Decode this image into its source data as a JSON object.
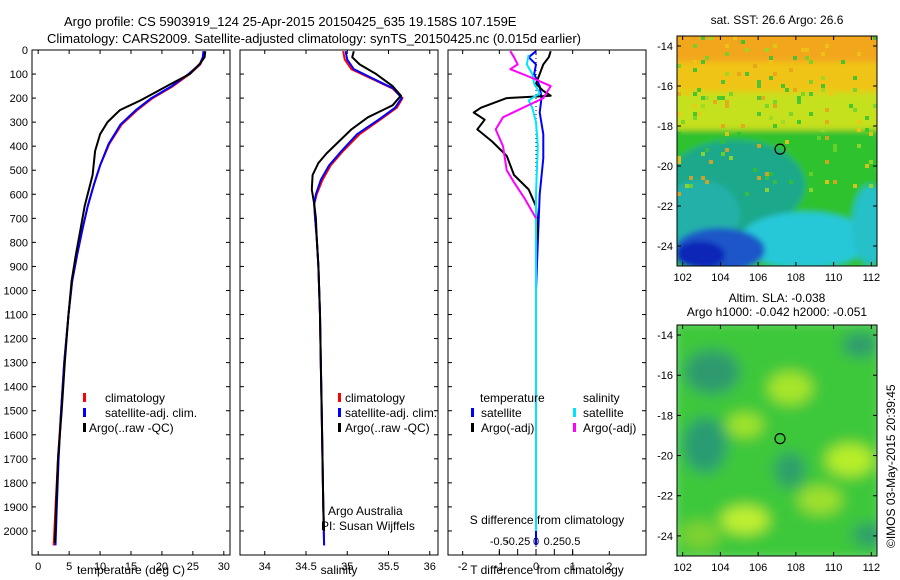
{
  "title": {
    "line1": "Argo profile: CS 5903919_124 25-Apr-2015 20150425_635 19.158S 107.159E",
    "line2": "Climatology: CARS2009. Satellite-adjusted climatology: synTS_20150425.nc (0.015d earlier)"
  },
  "colors": {
    "red": "#ff0000",
    "blue": "#0000ff",
    "black": "#000000",
    "cyan": "#00e5ff",
    "magenta": "#ff00ff"
  },
  "chart_data": [
    {
      "type": "line",
      "id": "temperature",
      "xlabel": "temperature (deg C)",
      "xlim": [
        -1,
        31
      ],
      "ylim": [
        2100,
        0
      ],
      "xticks": [
        0,
        5,
        10,
        15,
        20,
        25,
        30
      ],
      "yticks": [
        0,
        100,
        200,
        300,
        400,
        500,
        600,
        700,
        800,
        900,
        1000,
        1100,
        1200,
        1300,
        1400,
        1500,
        1600,
        1700,
        1800,
        1900,
        2000
      ],
      "legend": [
        "climatology",
        "satellite-adj. clim.",
        "Argo(..raw -QC)"
      ],
      "series": [
        {
          "name": "climatology",
          "color": "red",
          "points": [
            [
              26.8,
              5
            ],
            [
              26.7,
              30
            ],
            [
              26.2,
              60
            ],
            [
              24.5,
              100
            ],
            [
              21.8,
              150
            ],
            [
              18.5,
              200
            ],
            [
              16,
              250
            ],
            [
              13.5,
              310
            ],
            [
              11.5,
              390
            ],
            [
              10,
              480
            ],
            [
              9,
              560
            ],
            [
              8,
              650
            ],
            [
              7.2,
              740
            ],
            [
              6.3,
              850
            ],
            [
              5.5,
              960
            ],
            [
              4.9,
              1100
            ],
            [
              4.2,
              1300
            ],
            [
              3.7,
              1500
            ],
            [
              3.2,
              1700
            ],
            [
              2.8,
              1900
            ],
            [
              2.5,
              2060
            ]
          ]
        },
        {
          "name": "satellite-adj. clim.",
          "color": "blue",
          "points": [
            [
              26.7,
              5
            ],
            [
              26.6,
              30
            ],
            [
              26.1,
              60
            ],
            [
              24.3,
              100
            ],
            [
              21.6,
              150
            ],
            [
              18.3,
              200
            ],
            [
              15.8,
              250
            ],
            [
              13.3,
              310
            ],
            [
              11.4,
              390
            ],
            [
              10,
              480
            ],
            [
              9,
              560
            ],
            [
              8,
              650
            ],
            [
              7.2,
              740
            ],
            [
              6.3,
              850
            ],
            [
              5.5,
              960
            ],
            [
              4.9,
              1100
            ],
            [
              4.2,
              1300
            ],
            [
              3.7,
              1500
            ],
            [
              3.3,
              1700
            ],
            [
              3,
              1900
            ],
            [
              2.8,
              2060
            ]
          ]
        },
        {
          "name": "Argo(..raw -QC)",
          "color": "black",
          "points": [
            [
              27,
              5
            ],
            [
              26.9,
              30
            ],
            [
              26.2,
              55
            ],
            [
              24.5,
              100
            ],
            [
              21.5,
              140
            ],
            [
              19,
              175
            ],
            [
              16.5,
              210
            ],
            [
              13.2,
              250
            ],
            [
              11.2,
              300
            ],
            [
              10,
              350
            ],
            [
              9.2,
              420
            ],
            [
              8.8,
              520
            ],
            [
              8.2,
              580
            ],
            [
              7.5,
              650
            ],
            [
              6.8,
              750
            ],
            [
              6.1,
              850
            ],
            [
              5.4,
              960
            ],
            [
              4.9,
              1100
            ],
            [
              4.3,
              1300
            ],
            [
              3.8,
              1500
            ],
            [
              3.2,
              1700
            ],
            [
              2.9,
              1900
            ],
            [
              2.7,
              2050
            ]
          ]
        }
      ]
    },
    {
      "type": "line",
      "id": "salinity",
      "xlabel": "salinity",
      "xlim": [
        33.7,
        36.1
      ],
      "ylim": [
        2100,
        0
      ],
      "xticks": [
        34,
        34.5,
        35,
        35.5,
        36
      ],
      "legend": [
        "climatology",
        "satellite-adj. clim.",
        "Argo(..raw -QC)"
      ],
      "annotation": [
        "Argo Australia",
        "PI: Susan Wijffels"
      ],
      "series": [
        {
          "name": "climatology",
          "color": "red",
          "points": [
            [
              34.95,
              5
            ],
            [
              34.97,
              40
            ],
            [
              35.05,
              80
            ],
            [
              35.3,
              120
            ],
            [
              35.55,
              160
            ],
            [
              35.67,
              200
            ],
            [
              35.6,
              240
            ],
            [
              35.4,
              290
            ],
            [
              35.15,
              350
            ],
            [
              34.95,
              420
            ],
            [
              34.8,
              480
            ],
            [
              34.7,
              540
            ],
            [
              34.63,
              600
            ],
            [
              34.6,
              640
            ],
            [
              34.61,
              700
            ],
            [
              34.63,
              780
            ],
            [
              34.65,
              900
            ],
            [
              34.67,
              1100
            ],
            [
              34.68,
              1300
            ],
            [
              34.69,
              1500
            ],
            [
              34.7,
              1700
            ],
            [
              34.71,
              1900
            ],
            [
              34.72,
              2060
            ]
          ]
        },
        {
          "name": "satellite-adj. clim.",
          "color": "blue",
          "points": [
            [
              34.98,
              5
            ],
            [
              35,
              40
            ],
            [
              35.08,
              80
            ],
            [
              35.32,
              120
            ],
            [
              35.56,
              160
            ],
            [
              35.66,
              200
            ],
            [
              35.58,
              240
            ],
            [
              35.38,
              290
            ],
            [
              35.12,
              350
            ],
            [
              34.93,
              420
            ],
            [
              34.78,
              480
            ],
            [
              34.68,
              540
            ],
            [
              34.62,
              600
            ],
            [
              34.6,
              640
            ],
            [
              34.61,
              700
            ],
            [
              34.63,
              780
            ],
            [
              34.65,
              900
            ],
            [
              34.67,
              1100
            ],
            [
              34.68,
              1300
            ],
            [
              34.69,
              1500
            ],
            [
              34.7,
              1700
            ],
            [
              34.71,
              1900
            ],
            [
              34.72,
              2060
            ]
          ]
        },
        {
          "name": "Argo(..raw -QC)",
          "color": "black",
          "points": [
            [
              35.08,
              5
            ],
            [
              35.06,
              30
            ],
            [
              35.15,
              60
            ],
            [
              35.35,
              100
            ],
            [
              35.55,
              150
            ],
            [
              35.65,
              190
            ],
            [
              35.55,
              230
            ],
            [
              35.25,
              280
            ],
            [
              35.05,
              330
            ],
            [
              34.9,
              380
            ],
            [
              34.75,
              430
            ],
            [
              34.65,
              470
            ],
            [
              34.58,
              520
            ],
            [
              34.57,
              580
            ],
            [
              34.6,
              640
            ],
            [
              34.62,
              700
            ],
            [
              34.63,
              780
            ],
            [
              34.65,
              900
            ],
            [
              34.67,
              1100
            ],
            [
              34.68,
              1300
            ],
            [
              34.69,
              1500
            ],
            [
              34.7,
              1700
            ],
            [
              34.71,
              1900
            ],
            [
              34.72,
              2000
            ]
          ]
        }
      ]
    },
    {
      "type": "line",
      "id": "difference",
      "xlabel": "T difference from climatology",
      "xlabel2": "S difference from climatology",
      "xlim": [
        -2.4,
        3
      ],
      "ylim": [
        2100,
        0
      ],
      "xticks": [
        -2,
        -1,
        0,
        1,
        2
      ],
      "xticks2_values": [
        -1,
        -0.5,
        0,
        0.5,
        1
      ],
      "xticks2_labels": [
        "-0.5",
        "-0.25",
        "0",
        "0.25",
        "0.5"
      ],
      "legend": {
        "temperature_header": "temperature",
        "salinity_header": "salinity",
        "items": [
          "satellite",
          "Argo(-adj)",
          "satellite",
          "Argo(-adj)"
        ]
      },
      "series": [
        {
          "name": "T satellite",
          "color": "blue",
          "points": [
            [
              0,
              5
            ],
            [
              -0.2,
              30
            ],
            [
              0,
              60
            ],
            [
              -0.05,
              100
            ],
            [
              0.1,
              150
            ],
            [
              0.15,
              200
            ],
            [
              0.1,
              260
            ],
            [
              0.2,
              350
            ],
            [
              0.2,
              450
            ],
            [
              0.1,
              600
            ],
            [
              0.05,
              800
            ],
            [
              0,
              1000
            ],
            [
              0,
              1500
            ],
            [
              0,
              2000
            ],
            [
              0,
              2060
            ]
          ]
        },
        {
          "name": "T Argo(-adj)",
          "color": "black",
          "points": [
            [
              0.4,
              5
            ],
            [
              0.35,
              30
            ],
            [
              0.2,
              60
            ],
            [
              0.1,
              100
            ],
            [
              0,
              140
            ],
            [
              0.2,
              170
            ],
            [
              0.4,
              190
            ],
            [
              -0.8,
              200
            ],
            [
              -1.5,
              240
            ],
            [
              -1.7,
              260
            ],
            [
              -1.4,
              290
            ],
            [
              -1.6,
              330
            ],
            [
              -1.2,
              380
            ],
            [
              -0.8,
              440
            ],
            [
              -0.6,
              520
            ],
            [
              -0.2,
              580
            ],
            [
              0,
              650
            ],
            [
              0.05,
              750
            ],
            [
              0,
              800
            ]
          ]
        },
        {
          "name": "S satellite",
          "color": "cyan",
          "points": [
            [
              -0.2,
              20
            ],
            [
              -0.25,
              60
            ],
            [
              -0.1,
              100
            ],
            [
              -0.05,
              140
            ],
            [
              0.1,
              180
            ],
            [
              -0.2,
              210
            ],
            [
              -0.1,
              240
            ],
            [
              0,
              300
            ],
            [
              0.05,
              400
            ],
            [
              0,
              600
            ],
            [
              0,
              800
            ],
            [
              0,
              1000
            ],
            [
              0,
              1500
            ],
            [
              0,
              2000
            ]
          ]
        },
        {
          "name": "S Argo(-adj)",
          "color": "magenta",
          "points": [
            [
              -0.7,
              5
            ],
            [
              -0.6,
              30
            ],
            [
              -0.5,
              60
            ],
            [
              -0.7,
              80
            ],
            [
              -0.2,
              110
            ],
            [
              0.4,
              150
            ],
            [
              0.2,
              200
            ],
            [
              -0.9,
              280
            ],
            [
              -1.1,
              330
            ],
            [
              -0.9,
              400
            ],
            [
              -0.8,
              500
            ],
            [
              -0.6,
              550
            ],
            [
              -0.3,
              620
            ],
            [
              0,
              700
            ]
          ]
        }
      ]
    },
    {
      "type": "heatmap",
      "id": "sst_map",
      "title": "sat. SST: 26.6 Argo: 26.6",
      "xlim": [
        101.7,
        112.3
      ],
      "ylim": [
        -25,
        -13.5
      ],
      "xticks": [
        102,
        104,
        106,
        108,
        110,
        112
      ],
      "yticks": [
        -14,
        -16,
        -18,
        -20,
        -22,
        -24
      ],
      "argo_position": [
        107.159,
        -19.158
      ]
    },
    {
      "type": "heatmap",
      "id": "sla_map",
      "title": "Altim. SLA: -0.038",
      "subtitle": "Argo h1000: -0.042 h2000: -0.051",
      "xlim": [
        101.7,
        112.3
      ],
      "ylim": [
        -25,
        -13.5
      ],
      "xticks": [
        102,
        104,
        106,
        108,
        110,
        112
      ],
      "yticks": [
        -14,
        -16,
        -18,
        -20,
        -22,
        -24
      ],
      "argo_position": [
        107.159,
        -19.158
      ]
    }
  ],
  "side_label": "©IMOS 03-May-2015 20:39:45"
}
